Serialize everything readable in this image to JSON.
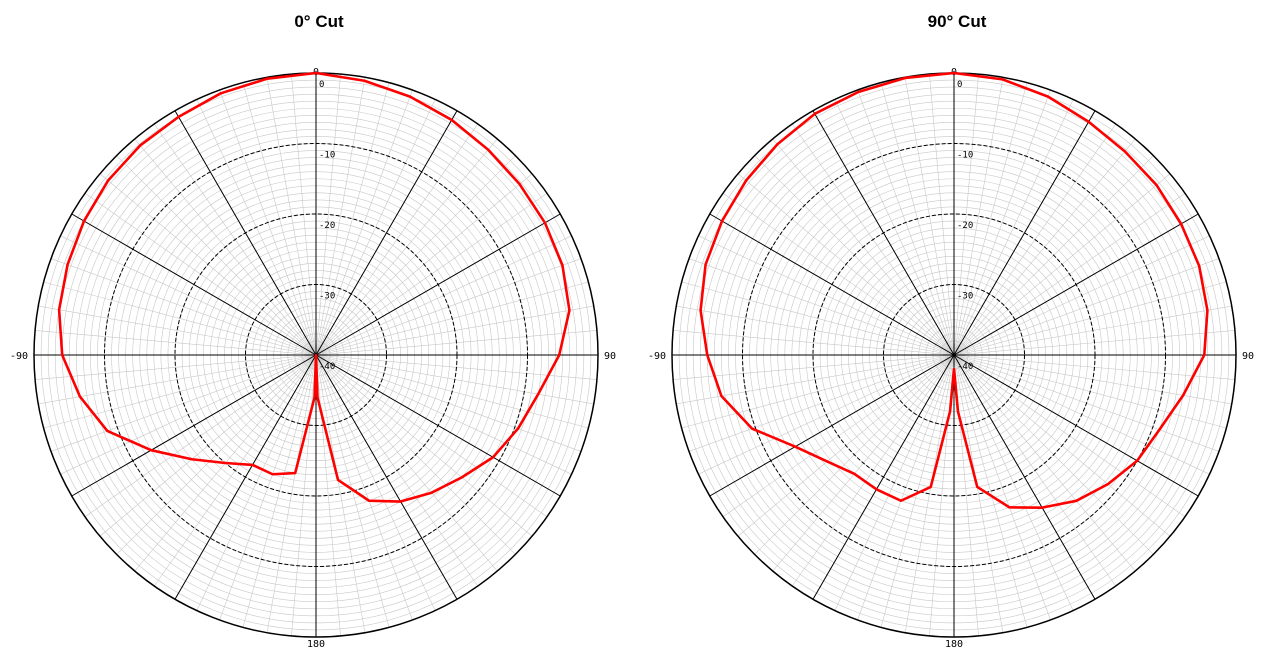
{
  "chart_data": [
    {
      "type": "polar-line",
      "title": "0° Cut",
      "angle_ticks": [
        "0",
        "90",
        "180",
        "-90"
      ],
      "radial_labels": [
        "0",
        "-10",
        "-20",
        "-30",
        "-40"
      ],
      "rlim": [
        -40,
        0
      ],
      "angle_unit": "deg",
      "grid": true,
      "line_color": "#ff0000",
      "series": [
        {
          "theta": [
            0,
            10,
            20,
            30,
            40,
            50,
            60,
            70,
            80,
            90,
            100,
            110,
            120,
            130,
            140,
            150,
            160,
            170,
            178,
            180,
            182,
            190,
            200,
            210,
            220,
            230,
            240,
            250,
            260,
            270,
            280,
            290,
            300,
            310,
            320,
            330,
            340,
            350,
            360
          ],
          "r": [
            0,
            -0.5,
            -1,
            -1.5,
            -2,
            -2.3,
            -2.5,
            -2.8,
            -3.5,
            -5.5,
            -8,
            -9.5,
            -11,
            -13,
            -14.5,
            -16,
            -18,
            -22,
            -34,
            -40,
            -34,
            -23,
            -22,
            -22,
            -20,
            -17,
            -13,
            -8.5,
            -6,
            -4,
            -3,
            -2.5,
            -2,
            -1.5,
            -1.2,
            -1,
            -0.5,
            -0.2,
            0
          ]
        }
      ]
    },
    {
      "type": "polar-line",
      "title": "90° Cut",
      "angle_ticks": [
        "0",
        "90",
        "180",
        "-90"
      ],
      "radial_labels": [
        "0",
        "-10",
        "-20",
        "-30",
        "-40"
      ],
      "rlim": [
        -40,
        0
      ],
      "angle_unit": "deg",
      "grid": true,
      "line_color": "#ff0000",
      "series": [
        {
          "theta": [
            0,
            10,
            20,
            30,
            40,
            50,
            60,
            70,
            80,
            90,
            100,
            110,
            120,
            130,
            140,
            150,
            160,
            170,
            176,
            180,
            184,
            190,
            200,
            210,
            220,
            230,
            240,
            250,
            260,
            270,
            280,
            290,
            300,
            310,
            320,
            330,
            340,
            350,
            360
          ],
          "r": [
            0,
            -0.3,
            -1,
            -1.8,
            -2.3,
            -2.5,
            -2.8,
            -3,
            -3.5,
            -4.5,
            -7,
            -9,
            -10,
            -11.5,
            -13,
            -15,
            -17,
            -21,
            -32,
            -38,
            -32,
            -21,
            -18,
            -18,
            -18,
            -16.5,
            -14,
            -9.5,
            -6.5,
            -5,
            -3.5,
            -2.5,
            -2,
            -1.5,
            -1,
            -0.5,
            -0.3,
            -0.1,
            0
          ]
        }
      ]
    }
  ]
}
